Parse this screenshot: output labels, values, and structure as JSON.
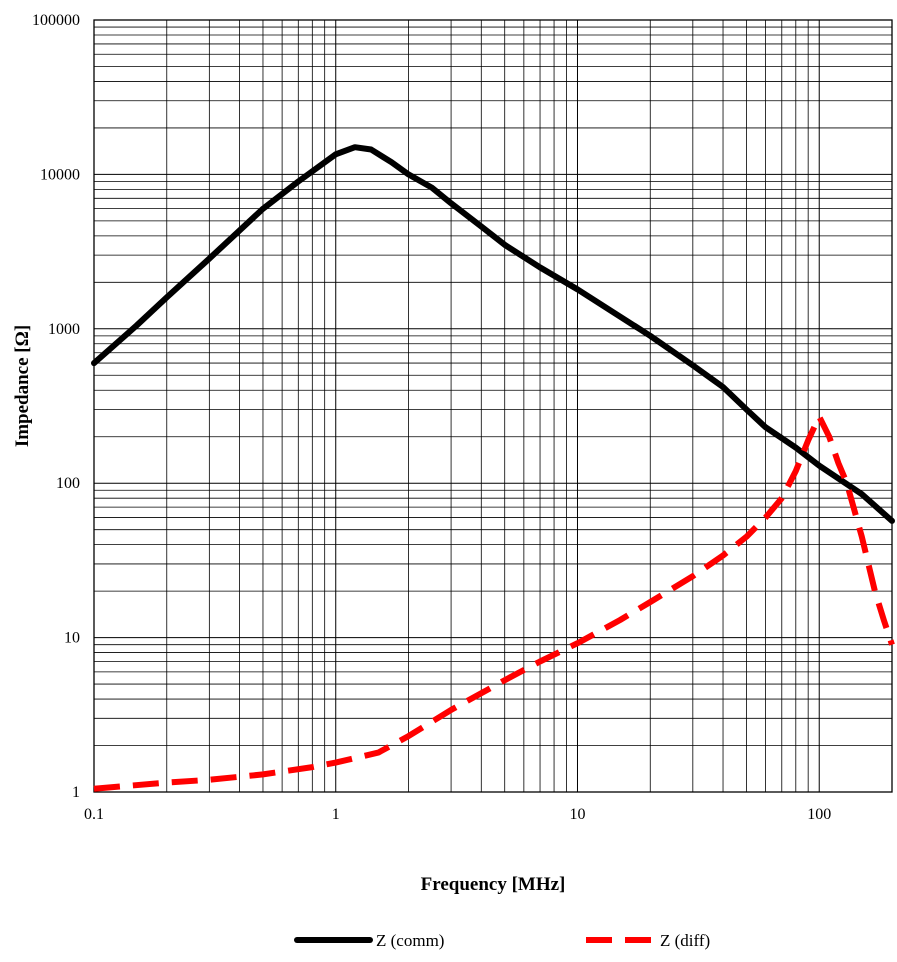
{
  "chart_data": {
    "type": "line",
    "xlabel": "Frequency [MHz]",
    "ylabel": "Impedance [Ω]",
    "x_scale": "log",
    "y_scale": "log",
    "xlim": [
      0.1,
      200
    ],
    "ylim": [
      1,
      100000
    ],
    "grid": true,
    "legend_position": "bottom",
    "x_ticks": [
      {
        "value": 0.1,
        "label": "0.1"
      },
      {
        "value": 1,
        "label": "1"
      },
      {
        "value": 10,
        "label": "10"
      },
      {
        "value": 100,
        "label": "100"
      }
    ],
    "y_ticks": [
      {
        "value": 1,
        "label": "1"
      },
      {
        "value": 10,
        "label": "10"
      },
      {
        "value": 100,
        "label": "100"
      },
      {
        "value": 1000,
        "label": "1000"
      },
      {
        "value": 10000,
        "label": "10000"
      },
      {
        "value": 100000,
        "label": "100000"
      }
    ],
    "series": [
      {
        "name": "Z (comm)",
        "color": "#000000",
        "style": "solid",
        "points": [
          [
            0.1,
            600
          ],
          [
            0.15,
            1050
          ],
          [
            0.2,
            1600
          ],
          [
            0.3,
            2850
          ],
          [
            0.5,
            6000
          ],
          [
            0.7,
            9000
          ],
          [
            1.0,
            13500
          ],
          [
            1.2,
            15000
          ],
          [
            1.4,
            14500
          ],
          [
            1.7,
            12000
          ],
          [
            2.0,
            10000
          ],
          [
            2.5,
            8200
          ],
          [
            3.0,
            6500
          ],
          [
            4.0,
            4600
          ],
          [
            5.0,
            3500
          ],
          [
            7.0,
            2500
          ],
          [
            10.0,
            1800
          ],
          [
            15.0,
            1200
          ],
          [
            20.0,
            900
          ],
          [
            30.0,
            580
          ],
          [
            40.0,
            420
          ],
          [
            50.0,
            300
          ],
          [
            60.0,
            230
          ],
          [
            80.0,
            170
          ],
          [
            100.0,
            130
          ],
          [
            150.0,
            85
          ],
          [
            200.0,
            57
          ]
        ]
      },
      {
        "name": "Z (diff)",
        "color": "#ff0000",
        "style": "dashed",
        "points": [
          [
            0.1,
            1.05
          ],
          [
            0.2,
            1.15
          ],
          [
            0.3,
            1.2
          ],
          [
            0.5,
            1.3
          ],
          [
            0.8,
            1.45
          ],
          [
            1.0,
            1.55
          ],
          [
            1.5,
            1.8
          ],
          [
            2.0,
            2.3
          ],
          [
            3.0,
            3.4
          ],
          [
            5.0,
            5.3
          ],
          [
            7.0,
            7.0
          ],
          [
            10.0,
            9.2
          ],
          [
            15.0,
            13.0
          ],
          [
            20.0,
            17.0
          ],
          [
            30.0,
            25.0
          ],
          [
            40.0,
            34.0
          ],
          [
            50.0,
            45.0
          ],
          [
            60.0,
            60.0
          ],
          [
            70.0,
            80.0
          ],
          [
            80.0,
            120.0
          ],
          [
            90.0,
            190.0
          ],
          [
            100.0,
            270.0
          ],
          [
            110.0,
            200.0
          ],
          [
            120.0,
            135.0
          ],
          [
            130.0,
            100.0
          ],
          [
            150.0,
            45.0
          ],
          [
            170.0,
            20.0
          ],
          [
            185.0,
            13.0
          ],
          [
            200.0,
            9.0
          ]
        ]
      }
    ]
  }
}
